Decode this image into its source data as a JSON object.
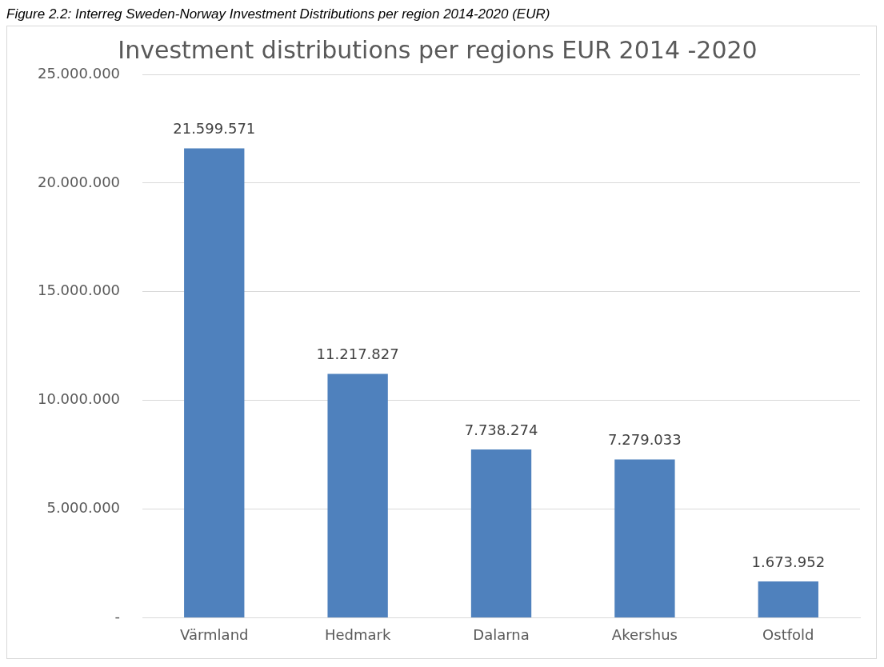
{
  "chart_data": {
    "type": "bar",
    "title": "Investment distributions per regions EUR 2014 -2020",
    "annotations": [
      "Figure 2.2: Interreg Sweden-Norway Investment Distributions per region 2014-2020 (EUR)"
    ],
    "categories": [
      "Värmland",
      "Hedmark",
      "Dalarna",
      "Akershus",
      "Ostfold"
    ],
    "values": [
      21599571,
      11217827,
      7738274,
      7279033,
      1673952
    ],
    "value_labels": [
      "21.599.571",
      "11.217.827",
      "7.738.274",
      "7.279.033",
      "1.673.952"
    ],
    "color": "#4f81bd",
    "ylim": [
      0,
      25000000
    ],
    "yticks": [
      {
        "value": 0,
        "label": "-"
      },
      {
        "value": 5000000,
        "label": "5.000.000"
      },
      {
        "value": 10000000,
        "label": "10.000.000"
      },
      {
        "value": 15000000,
        "label": "15.000.000"
      },
      {
        "value": 20000000,
        "label": "20.000.000"
      },
      {
        "value": 25000000,
        "label": "25.000.000"
      }
    ],
    "grid": "y",
    "legend": false
  }
}
